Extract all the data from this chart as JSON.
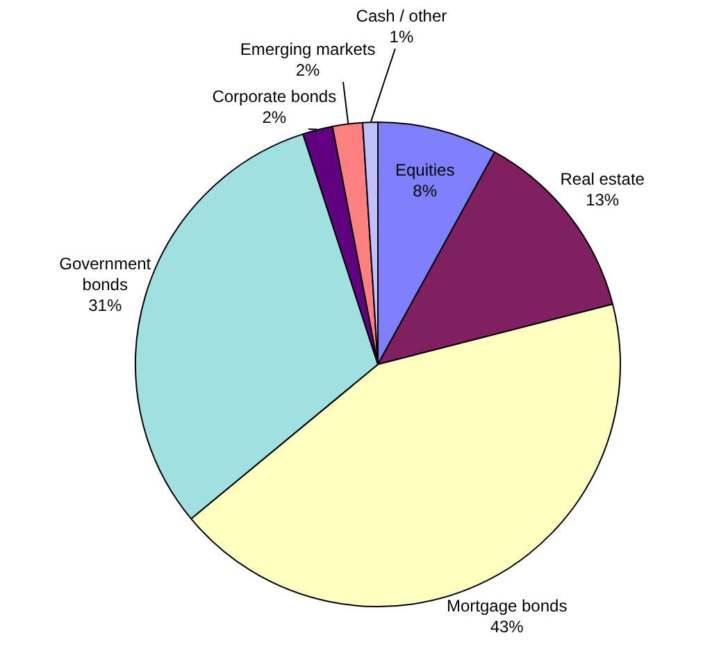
{
  "chart_data": {
    "type": "pie",
    "categories": [
      "Equities",
      "Real estate",
      "Mortgage bonds",
      "Government bonds",
      "Corporate bonds",
      "Emerging markets",
      "Cash / other"
    ],
    "values": [
      8,
      13,
      43,
      31,
      2,
      2,
      1
    ],
    "value_labels": [
      "8%",
      "13%",
      "43%",
      "31%",
      "2%",
      "2%",
      "1%"
    ],
    "colors": [
      "#8080ff",
      "#802060",
      "#ffffc0",
      "#a0e0e0",
      "#600080",
      "#ff8080",
      "#c0c0ff"
    ],
    "legend": false
  }
}
